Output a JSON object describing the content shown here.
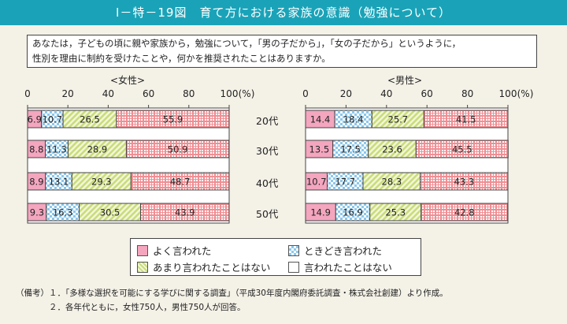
{
  "title": "Ⅰ－特－19図　育て方における家族の意識（勉強について）",
  "question": [
    "あなたは，子どもの頃に親や家族から，勉強について，「男の子だから」，「女の子だから」というように，",
    "性別を理由に制約を受けたことや，何かを推奨されたことはありますか。"
  ],
  "colors": {
    "title_bar": "#1aa3b8",
    "often": "#f4a6bf",
    "sometimes": "#8cc8ec",
    "rarely": "#c9dc7a",
    "never": "#ef8f94"
  },
  "chart_data": [
    {
      "type": "bar",
      "orientation": "horizontal",
      "stacked": true,
      "title": "<女性>",
      "unit": "(%)",
      "xlim": [
        0,
        100
      ],
      "xticks": [
        0,
        20,
        40,
        60,
        80,
        100
      ],
      "categories": [
        "20代",
        "30代",
        "40代",
        "50代"
      ],
      "series": [
        {
          "name": "よく言われた",
          "values": [
            6.9,
            8.8,
            8.9,
            9.3
          ]
        },
        {
          "name": "ときどき言われた",
          "values": [
            10.7,
            11.3,
            13.1,
            16.3
          ]
        },
        {
          "name": "あまり言われたことはない",
          "values": [
            26.5,
            28.9,
            29.3,
            30.5
          ]
        },
        {
          "name": "言われたことはない",
          "values": [
            55.9,
            50.9,
            48.7,
            43.9
          ]
        }
      ]
    },
    {
      "type": "bar",
      "orientation": "horizontal",
      "stacked": true,
      "title": "<男性>",
      "unit": "(%)",
      "xlim": [
        0,
        100
      ],
      "xticks": [
        0,
        20,
        40,
        60,
        80,
        100
      ],
      "categories": [
        "20代",
        "30代",
        "40代",
        "50代"
      ],
      "series": [
        {
          "name": "よく言われた",
          "values": [
            14.4,
            13.5,
            10.7,
            14.9
          ]
        },
        {
          "name": "ときどき言われた",
          "values": [
            18.4,
            17.5,
            17.7,
            16.9
          ]
        },
        {
          "name": "あまり言われたことはない",
          "values": [
            25.7,
            23.6,
            28.3,
            25.3
          ]
        },
        {
          "name": "言われたことはない",
          "values": [
            41.5,
            45.5,
            43.3,
            42.8
          ]
        }
      ]
    }
  ],
  "legend": [
    "よく言われた",
    "ときどき言われた",
    "あまり言われたことはない",
    "言われたことはない"
  ],
  "notes": [
    "（備考）１．「多様な選択を可能にする学びに関する調査」（平成30年度内閣府委託調査・株式会社創建）より作成。",
    "　　　　２．各年代ともに，女性750人，男性750人が回答。"
  ]
}
